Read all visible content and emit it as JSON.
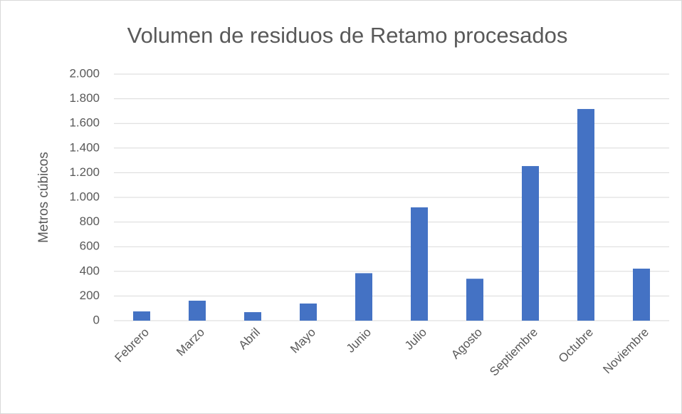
{
  "chart_data": {
    "type": "bar",
    "title": "Volumen de residuos de Retamo procesados",
    "y_label": "Metros cúbicos",
    "categories": [
      "Febrero",
      "Marzo",
      "Abril",
      "Mayo",
      "Junio",
      "Julio",
      "Agosto",
      "Septiembre",
      "Octubre",
      "Noviembre"
    ],
    "values": [
      75,
      162,
      69,
      139,
      385,
      919,
      340,
      1254,
      1717,
      422
    ],
    "color": "#4472c4",
    "ylim": [
      0,
      2000
    ],
    "yticks": [
      0,
      200,
      400,
      600,
      800,
      {
        "value": 1000,
        "label": "1.000"
      },
      {
        "value": 1200,
        "label": "1.200"
      },
      {
        "value": 1400,
        "label": "1.400"
      },
      {
        "value": 1600,
        "label": "1.600"
      },
      {
        "value": 1800,
        "label": "1.800"
      },
      {
        "value": 2000,
        "label": "2.000"
      }
    ],
    "grid": true
  }
}
